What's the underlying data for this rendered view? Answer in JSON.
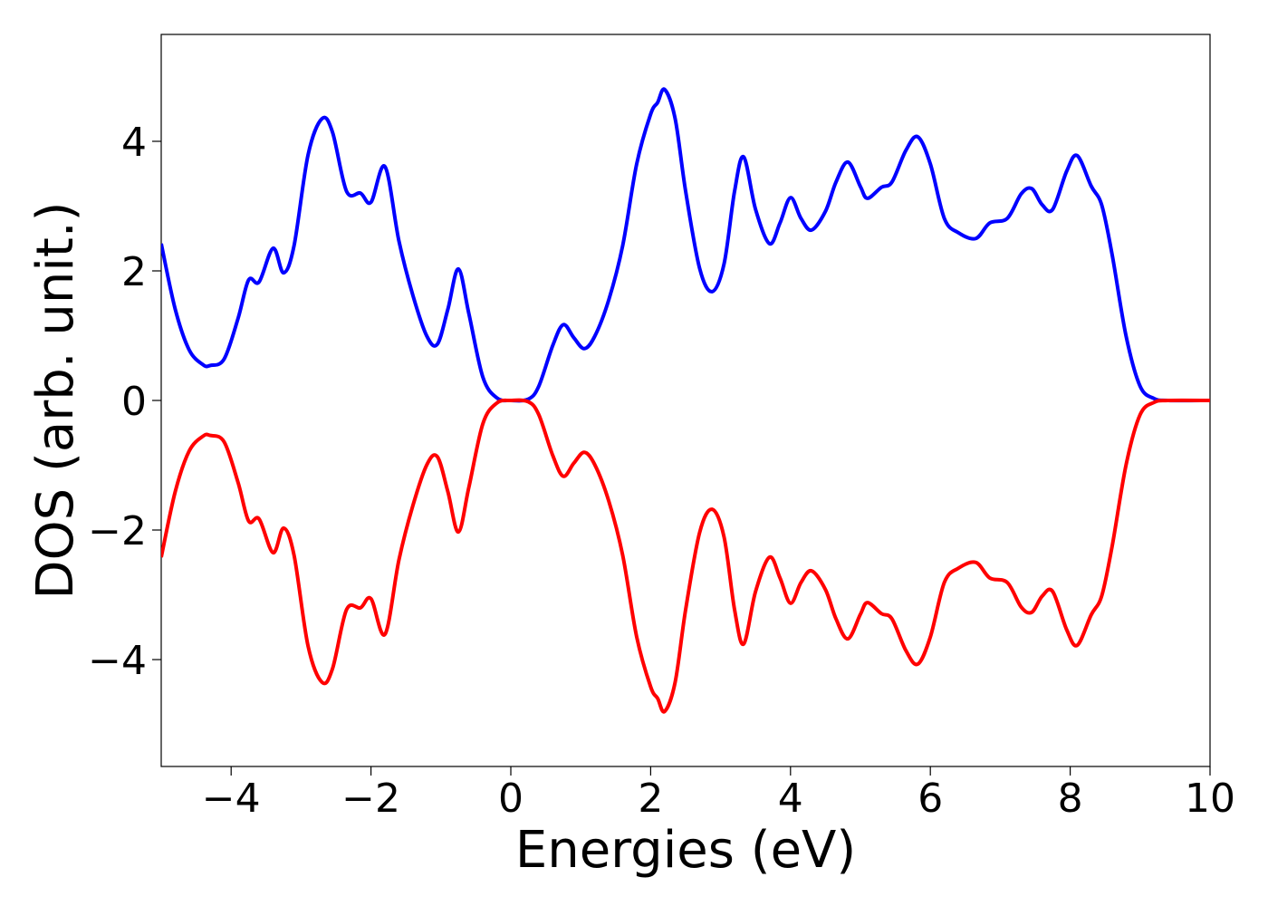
{
  "chart_data": {
    "type": "line",
    "xlabel": "Energies (eV)",
    "ylabel": "DOS (arb. unit.)",
    "x": [
      -5,
      -4.8,
      -4.6,
      -4.4,
      -4.3,
      -4.1,
      -3.9,
      -3.75,
      -3.6,
      -3.4,
      -3.25,
      -3.1,
      -2.9,
      -2.7,
      -2.55,
      -2.35,
      -2.15,
      -2.0,
      -1.8,
      -1.6,
      -1.4,
      -1.2,
      -1.05,
      -0.9,
      -0.75,
      -0.6,
      -0.4,
      -0.2,
      0,
      0.25,
      0.4,
      0.6,
      0.75,
      0.9,
      1.05,
      1.2,
      1.4,
      1.6,
      1.8,
      2.0,
      2.1,
      2.2,
      2.35,
      2.5,
      2.7,
      2.88,
      3.05,
      3.2,
      3.33,
      3.5,
      3.7,
      3.85,
      4.0,
      4.15,
      4.3,
      4.5,
      4.65,
      4.82,
      5.0,
      5.1,
      5.3,
      5.45,
      5.65,
      5.82,
      6.0,
      6.2,
      6.4,
      6.65,
      6.85,
      7.1,
      7.3,
      7.45,
      7.6,
      7.75,
      7.95,
      8.1,
      8.3,
      8.45,
      8.6,
      8.8,
      9.0,
      9.2,
      9.4,
      10
    ],
    "series": [
      {
        "color": "#0000ff",
        "values": [
          2.42,
          1.41,
          0.78,
          0.55,
          0.54,
          0.64,
          1.27,
          1.86,
          1.83,
          2.35,
          1.97,
          2.39,
          3.79,
          4.35,
          4.14,
          3.23,
          3.2,
          3.06,
          3.61,
          2.46,
          1.62,
          0.99,
          0.87,
          1.41,
          2.03,
          1.34,
          0.36,
          0.04,
          0,
          0.02,
          0.22,
          0.85,
          1.17,
          0.97,
          0.8,
          0.99,
          1.55,
          2.39,
          3.65,
          4.42,
          4.6,
          4.8,
          4.35,
          3.23,
          2.04,
          1.68,
          2.11,
          3.23,
          3.76,
          2.95,
          2.42,
          2.74,
          3.13,
          2.81,
          2.63,
          2.92,
          3.37,
          3.68,
          3.3,
          3.12,
          3.29,
          3.37,
          3.86,
          4.07,
          3.65,
          2.81,
          2.59,
          2.5,
          2.74,
          2.81,
          3.19,
          3.27,
          3.02,
          2.95,
          3.54,
          3.78,
          3.31,
          3.02,
          2.25,
          0.99,
          0.22,
          0.03,
          0,
          0
        ]
      },
      {
        "color": "#ff0000",
        "values": [
          -2.42,
          -1.41,
          -0.78,
          -0.55,
          -0.54,
          -0.64,
          -1.27,
          -1.86,
          -1.83,
          -2.35,
          -1.97,
          -2.39,
          -3.79,
          -4.35,
          -4.14,
          -3.23,
          -3.2,
          -3.06,
          -3.61,
          -2.46,
          -1.62,
          -0.99,
          -0.87,
          -1.41,
          -2.03,
          -1.34,
          -0.36,
          -0.04,
          0,
          -0.02,
          -0.22,
          -0.85,
          -1.17,
          -0.97,
          -0.8,
          -0.99,
          -1.55,
          -2.39,
          -3.65,
          -4.42,
          -4.6,
          -4.8,
          -4.35,
          -3.23,
          -2.04,
          -1.68,
          -2.11,
          -3.23,
          -3.76,
          -2.95,
          -2.42,
          -2.74,
          -3.13,
          -2.81,
          -2.63,
          -2.92,
          -3.37,
          -3.68,
          -3.3,
          -3.12,
          -3.29,
          -3.37,
          -3.86,
          -4.07,
          -3.65,
          -2.81,
          -2.59,
          -2.5,
          -2.74,
          -2.81,
          -3.19,
          -3.27,
          -3.02,
          -2.95,
          -3.54,
          -3.78,
          -3.31,
          -3.02,
          -2.25,
          -0.99,
          -0.22,
          -0.03,
          0,
          0
        ]
      }
    ],
    "xlim": [
      -5,
      10
    ],
    "xticks": [
      {
        "value": -4,
        "label": "−4"
      },
      {
        "value": -2,
        "label": "−2"
      },
      0,
      2,
      4,
      6,
      8,
      10
    ],
    "ylim": [
      -5.65,
      5.65
    ],
    "yticks": [
      {
        "value": -4,
        "label": "−4"
      },
      {
        "value": -2,
        "label": "−2"
      },
      0,
      2,
      4
    ],
    "grid": false
  }
}
